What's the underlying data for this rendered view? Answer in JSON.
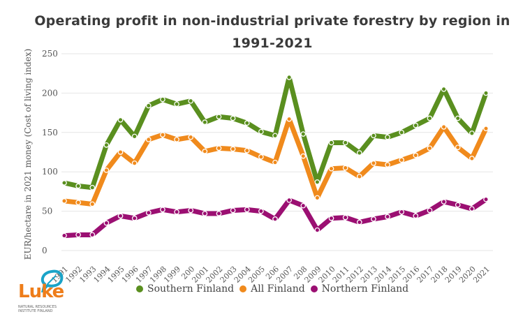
{
  "chart_data": {
    "type": "line",
    "title": "Operating profit in non-industrial private forestry by region in 1991-2021",
    "title_lines": [
      "Operating profit in non-industrial private forestry by region in",
      "1991-2021"
    ],
    "xlabel": "",
    "ylabel": "EUR/hectare in 2021 money (Cost of living index)",
    "ylim": [
      0,
      250
    ],
    "yticks": [
      0,
      50,
      100,
      150,
      200,
      250
    ],
    "grid": true,
    "legend_position": "bottom",
    "x": [
      "1991",
      "1992",
      "1993",
      "1994",
      "1995",
      "1996",
      "1997",
      "1998",
      "1999",
      "200",
      "2001",
      "2002",
      "2003",
      "2004",
      "2005",
      "206",
      "2007",
      "208",
      "2009",
      "2010",
      "2011",
      "2012",
      "2013",
      "2014",
      "2015",
      "2016",
      "2017",
      "2018",
      "2019",
      "2020",
      "2021"
    ],
    "series": [
      {
        "name": "Southern Finland",
        "color": "#5a8f1f",
        "values": [
          86,
          82,
          80,
          134,
          166,
          145,
          184,
          192,
          186,
          190,
          163,
          170,
          168,
          162,
          151,
          146,
          220,
          148,
          87,
          137,
          137,
          124,
          146,
          144,
          150,
          159,
          168,
          205,
          168,
          149,
          200
        ]
      },
      {
        "name": "All Finland",
        "color": "#f08a1c",
        "values": [
          63,
          61,
          59,
          102,
          125,
          111,
          141,
          147,
          141,
          144,
          126,
          130,
          129,
          127,
          119,
          112,
          167,
          120,
          67,
          104,
          105,
          94,
          111,
          109,
          115,
          121,
          130,
          157,
          131,
          117,
          155
        ]
      },
      {
        "name": "Northern Finland",
        "color": "#9b0f72",
        "values": [
          19,
          20,
          20,
          35,
          44,
          41,
          48,
          52,
          49,
          51,
          47,
          47,
          51,
          52,
          50,
          40,
          64,
          57,
          26,
          41,
          42,
          36,
          40,
          43,
          49,
          44,
          51,
          62,
          58,
          53,
          65
        ]
      }
    ]
  },
  "logo": {
    "name": "Luke",
    "subtitle_line1": "NATURAL RESOURCES",
    "subtitle_line2": "INSTITUTE FINLAND",
    "brand_color": "#ee7d1a",
    "accent_color": "#1aa3c8"
  }
}
